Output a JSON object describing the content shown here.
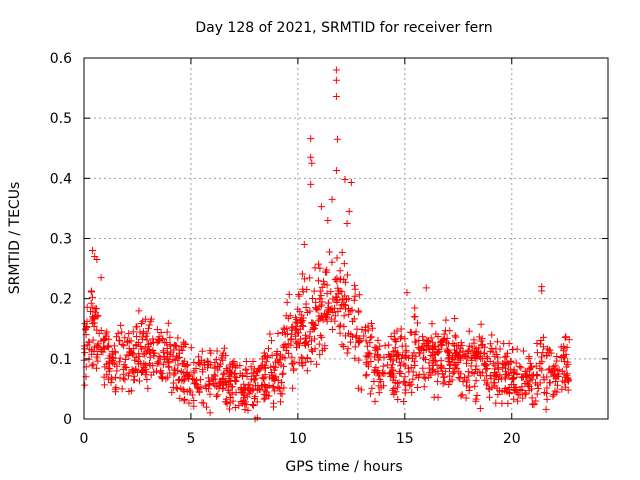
{
  "chart_data": {
    "type": "scatter",
    "title": "Day 128 of 2021, SRMTID for receiver fern",
    "xlabel": "GPS time / hours",
    "ylabel": "SRMTID / TECUs",
    "xlim": [
      0,
      24.5
    ],
    "ylim": [
      0,
      0.6
    ],
    "x_ticks": [
      0,
      5,
      10,
      15,
      20
    ],
    "x_tick_labels": [
      "0",
      "5",
      "10",
      "15",
      "20"
    ],
    "y_ticks": [
      0,
      0.1,
      0.2,
      0.3,
      0.4,
      0.5,
      0.6
    ],
    "y_tick_labels": [
      "0",
      "0.1",
      "0.2",
      "0.3",
      "0.4",
      "0.5",
      "0.6"
    ],
    "grid": true,
    "marker": "+",
    "series_color": "#ff0000",
    "data_span_hours": [
      0,
      22.7
    ],
    "trend": {
      "x": [
        0,
        0.5,
        1,
        2,
        3,
        4,
        5,
        6,
        7,
        7.5,
        8,
        9,
        9.5,
        10,
        10.5,
        11,
        11.5,
        12,
        12.5,
        13,
        14,
        15,
        15.5,
        16,
        17,
        18,
        19,
        20,
        21,
        21.5,
        22,
        22.7
      ],
      "y": [
        0.12,
        0.15,
        0.1,
        0.1,
        0.11,
        0.1,
        0.07,
        0.07,
        0.065,
        0.05,
        0.06,
        0.08,
        0.12,
        0.14,
        0.16,
        0.18,
        0.19,
        0.2,
        0.17,
        0.11,
        0.085,
        0.09,
        0.12,
        0.11,
        0.1,
        0.095,
        0.085,
        0.07,
        0.07,
        0.09,
        0.08,
        0.085
      ]
    },
    "notable_points": [
      {
        "x": 11.8,
        "y": 0.58
      },
      {
        "x": 11.8,
        "y": 0.563
      },
      {
        "x": 11.8,
        "y": 0.536
      },
      {
        "x": 10.6,
        "y": 0.466
      },
      {
        "x": 11.85,
        "y": 0.465
      },
      {
        "x": 10.6,
        "y": 0.435
      },
      {
        "x": 10.65,
        "y": 0.425
      },
      {
        "x": 11.8,
        "y": 0.413
      },
      {
        "x": 12.2,
        "y": 0.398
      },
      {
        "x": 12.5,
        "y": 0.393
      },
      {
        "x": 10.6,
        "y": 0.39
      },
      {
        "x": 11.6,
        "y": 0.365
      },
      {
        "x": 11.1,
        "y": 0.353
      },
      {
        "x": 12.4,
        "y": 0.345
      },
      {
        "x": 12.3,
        "y": 0.325
      },
      {
        "x": 11.4,
        "y": 0.33
      },
      {
        "x": 0.4,
        "y": 0.28
      },
      {
        "x": 0.5,
        "y": 0.27
      },
      {
        "x": 0.6,
        "y": 0.265
      },
      {
        "x": 0.8,
        "y": 0.235
      },
      {
        "x": 10.3,
        "y": 0.29
      },
      {
        "x": 15.1,
        "y": 0.21
      },
      {
        "x": 16.0,
        "y": 0.218
      },
      {
        "x": 21.4,
        "y": 0.22
      },
      {
        "x": 21.4,
        "y": 0.213
      },
      {
        "x": 8.0,
        "y": 0.0
      },
      {
        "x": 8.1,
        "y": 0.002
      }
    ]
  }
}
